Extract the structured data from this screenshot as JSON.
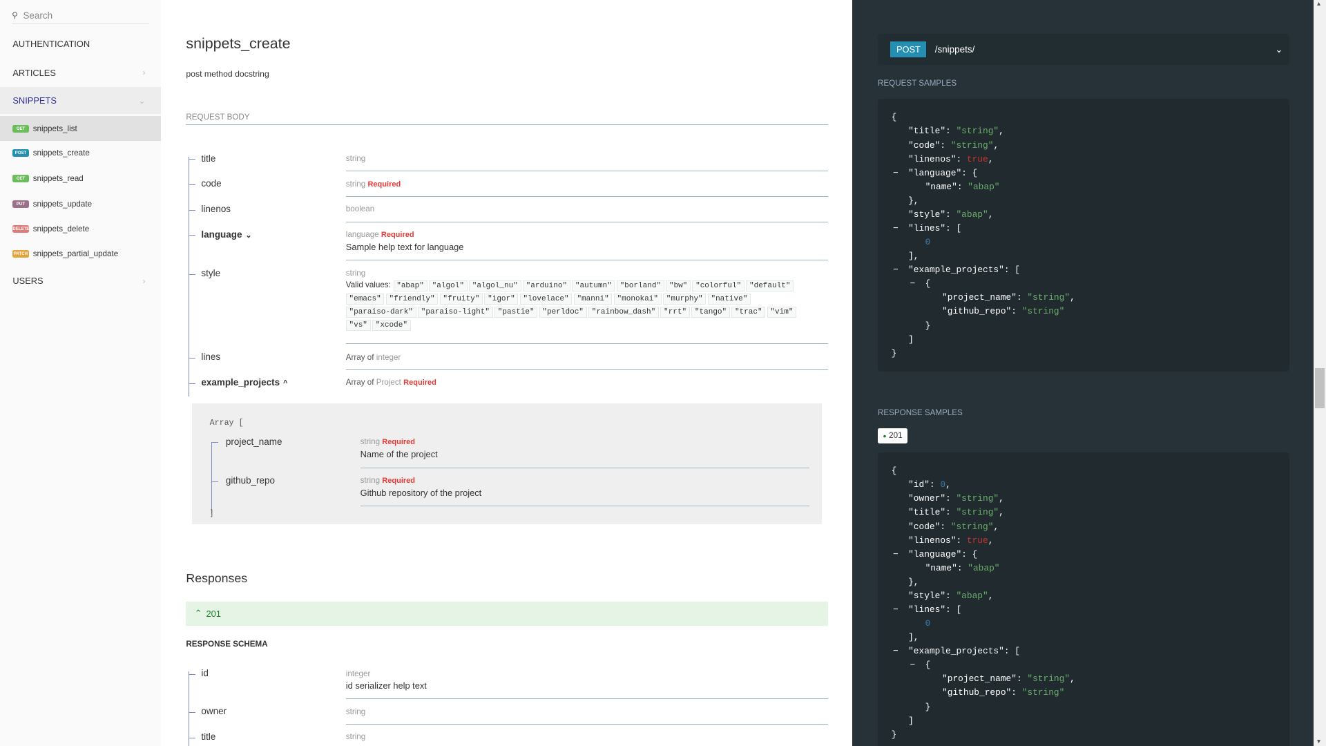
{
  "sidebar": {
    "search_placeholder": "Search",
    "sections": [
      {
        "label": "AUTHENTICATION"
      },
      {
        "label": "ARTICLES"
      },
      {
        "label": "SNIPPETS"
      },
      {
        "label": "USERS"
      }
    ],
    "items": [
      {
        "method": "GET",
        "label": "snippets_list",
        "color": "#6bbd5b"
      },
      {
        "method": "POST",
        "label": "snippets_create",
        "color": "#248fb2"
      },
      {
        "method": "GET",
        "label": "snippets_read",
        "color": "#6bbd5b"
      },
      {
        "method": "PUT",
        "label": "snippets_update",
        "color": "#9b708b"
      },
      {
        "method": "DELETE",
        "label": "snippets_delete",
        "color": "#e27a7a"
      },
      {
        "method": "PATCH",
        "label": "snippets_partial_update",
        "color": "#e5a33d"
      }
    ],
    "accent": "#32329f"
  },
  "main": {
    "title": "snippets_create",
    "docstring": "post method docstring",
    "request_body_label": "REQUEST BODY",
    "fields": [
      {
        "name": "title",
        "type": "string"
      },
      {
        "name": "code",
        "type": "string",
        "required": "Required"
      },
      {
        "name": "linenos",
        "type": "boolean"
      },
      {
        "name": "language",
        "type": "language",
        "required": "Required",
        "desc": "Sample help text for language",
        "bold": true,
        "toggle": "⌄"
      },
      {
        "name": "style",
        "type": "string",
        "valid_label": "Valid values:",
        "values": [
          "\"abap\"",
          "\"algol\"",
          "\"algol_nu\"",
          "\"arduino\"",
          "\"autumn\"",
          "\"borland\"",
          "\"bw\"",
          "\"colorful\"",
          "\"default\"",
          "\"emacs\"",
          "\"friendly\"",
          "\"fruity\"",
          "\"igor\"",
          "\"lovelace\"",
          "\"manni\"",
          "\"monokai\"",
          "\"murphy\"",
          "\"native\"",
          "\"paraiso-dark\"",
          "\"paraiso-light\"",
          "\"pastie\"",
          "\"perldoc\"",
          "\"rainbow_dash\"",
          "\"rrt\"",
          "\"tango\"",
          "\"trac\"",
          "\"vim\"",
          "\"vs\"",
          "\"xcode\""
        ]
      },
      {
        "name": "lines",
        "array_of": "Array of",
        "type": "integer"
      },
      {
        "name": "example_projects",
        "array_of": "Array of",
        "type": "Project",
        "required": "Required",
        "bold": true,
        "toggle": "^"
      }
    ],
    "nested": {
      "open": "Array [",
      "close": "]",
      "fields": [
        {
          "name": "project_name",
          "type": "string",
          "required": "Required",
          "desc": "Name of the project"
        },
        {
          "name": "github_repo",
          "type": "string",
          "required": "Required",
          "desc": "Github repository of the project"
        }
      ]
    },
    "responses_title": "Responses",
    "response_code": "201",
    "response_schema_label": "RESPONSE SCHEMA",
    "response_fields": [
      {
        "name": "id",
        "type": "integer",
        "desc": "id serializer help text"
      },
      {
        "name": "owner",
        "type": "string"
      },
      {
        "name": "title",
        "type": "string"
      }
    ]
  },
  "right": {
    "method": "POST",
    "path": "/snippets/",
    "request_samples_label": "REQUEST SAMPLES",
    "response_samples_label": "RESPONSE SAMPLES",
    "response_tab": "201",
    "request_code": [
      {
        "i": 0,
        "p": [
          [
            "{",
            "p"
          ]
        ]
      },
      {
        "i": 1,
        "p": [
          [
            "\"title\": ",
            "k"
          ],
          [
            "\"string\"",
            "s"
          ],
          [
            ",",
            "p"
          ]
        ]
      },
      {
        "i": 1,
        "p": [
          [
            "\"code\": ",
            "k"
          ],
          [
            "\"string\"",
            "s"
          ],
          [
            ",",
            "p"
          ]
        ]
      },
      {
        "i": 1,
        "p": [
          [
            "\"linenos\": ",
            "k"
          ],
          [
            "true",
            "b"
          ],
          [
            ",",
            "p"
          ]
        ]
      },
      {
        "i": 1,
        "t": "−",
        "p": [
          [
            "\"language\": {",
            "k"
          ]
        ]
      },
      {
        "i": 2,
        "p": [
          [
            "\"name\": ",
            "k"
          ],
          [
            "\"abap\"",
            "s"
          ]
        ]
      },
      {
        "i": 1,
        "p": [
          [
            "},",
            "p"
          ]
        ]
      },
      {
        "i": 1,
        "p": [
          [
            "\"style\": ",
            "k"
          ],
          [
            "\"abap\"",
            "s"
          ],
          [
            ",",
            "p"
          ]
        ]
      },
      {
        "i": 1,
        "t": "−",
        "p": [
          [
            "\"lines\": [",
            "k"
          ]
        ]
      },
      {
        "i": 2,
        "p": [
          [
            "0",
            "n"
          ]
        ]
      },
      {
        "i": 1,
        "p": [
          [
            "],",
            "p"
          ]
        ]
      },
      {
        "i": 1,
        "t": "−",
        "p": [
          [
            "\"example_projects\": [",
            "k"
          ]
        ]
      },
      {
        "i": 2,
        "t": "−",
        "p": [
          [
            "{",
            "p"
          ]
        ]
      },
      {
        "i": 3,
        "p": [
          [
            "\"project_name\": ",
            "k"
          ],
          [
            "\"string\"",
            "s"
          ],
          [
            ",",
            "p"
          ]
        ]
      },
      {
        "i": 3,
        "p": [
          [
            "\"github_repo\": ",
            "k"
          ],
          [
            "\"string\"",
            "s"
          ]
        ]
      },
      {
        "i": 2,
        "p": [
          [
            "}",
            "p"
          ]
        ]
      },
      {
        "i": 1,
        "p": [
          [
            "]",
            "p"
          ]
        ]
      },
      {
        "i": 0,
        "p": [
          [
            "}",
            "p"
          ]
        ]
      }
    ],
    "response_code": [
      {
        "i": 0,
        "p": [
          [
            "{",
            "p"
          ]
        ]
      },
      {
        "i": 1,
        "p": [
          [
            "\"id\": ",
            "k"
          ],
          [
            "0",
            "n"
          ],
          [
            ",",
            "p"
          ]
        ]
      },
      {
        "i": 1,
        "p": [
          [
            "\"owner\": ",
            "k"
          ],
          [
            "\"string\"",
            "s"
          ],
          [
            ",",
            "p"
          ]
        ]
      },
      {
        "i": 1,
        "p": [
          [
            "\"title\": ",
            "k"
          ],
          [
            "\"string\"",
            "s"
          ],
          [
            ",",
            "p"
          ]
        ]
      },
      {
        "i": 1,
        "p": [
          [
            "\"code\": ",
            "k"
          ],
          [
            "\"string\"",
            "s"
          ],
          [
            ",",
            "p"
          ]
        ]
      },
      {
        "i": 1,
        "p": [
          [
            "\"linenos\": ",
            "k"
          ],
          [
            "true",
            "b"
          ],
          [
            ",",
            "p"
          ]
        ]
      },
      {
        "i": 1,
        "t": "−",
        "p": [
          [
            "\"language\": {",
            "k"
          ]
        ]
      },
      {
        "i": 2,
        "p": [
          [
            "\"name\": ",
            "k"
          ],
          [
            "\"abap\"",
            "s"
          ]
        ]
      },
      {
        "i": 1,
        "p": [
          [
            "},",
            "p"
          ]
        ]
      },
      {
        "i": 1,
        "p": [
          [
            "\"style\": ",
            "k"
          ],
          [
            "\"abap\"",
            "s"
          ],
          [
            ",",
            "p"
          ]
        ]
      },
      {
        "i": 1,
        "t": "−",
        "p": [
          [
            "\"lines\": [",
            "k"
          ]
        ]
      },
      {
        "i": 2,
        "p": [
          [
            "0",
            "n"
          ]
        ]
      },
      {
        "i": 1,
        "p": [
          [
            "],",
            "p"
          ]
        ]
      },
      {
        "i": 1,
        "t": "−",
        "p": [
          [
            "\"example_projects\": [",
            "k"
          ]
        ]
      },
      {
        "i": 2,
        "t": "−",
        "p": [
          [
            "{",
            "p"
          ]
        ]
      },
      {
        "i": 3,
        "p": [
          [
            "\"project_name\": ",
            "k"
          ],
          [
            "\"string\"",
            "s"
          ],
          [
            ",",
            "p"
          ]
        ]
      },
      {
        "i": 3,
        "p": [
          [
            "\"github_repo\": ",
            "k"
          ],
          [
            "\"string\"",
            "s"
          ]
        ]
      },
      {
        "i": 2,
        "p": [
          [
            "}",
            "p"
          ]
        ]
      },
      {
        "i": 1,
        "p": [
          [
            "]",
            "p"
          ]
        ]
      },
      {
        "i": 0,
        "p": [
          [
            "}",
            "p"
          ]
        ]
      }
    ]
  }
}
